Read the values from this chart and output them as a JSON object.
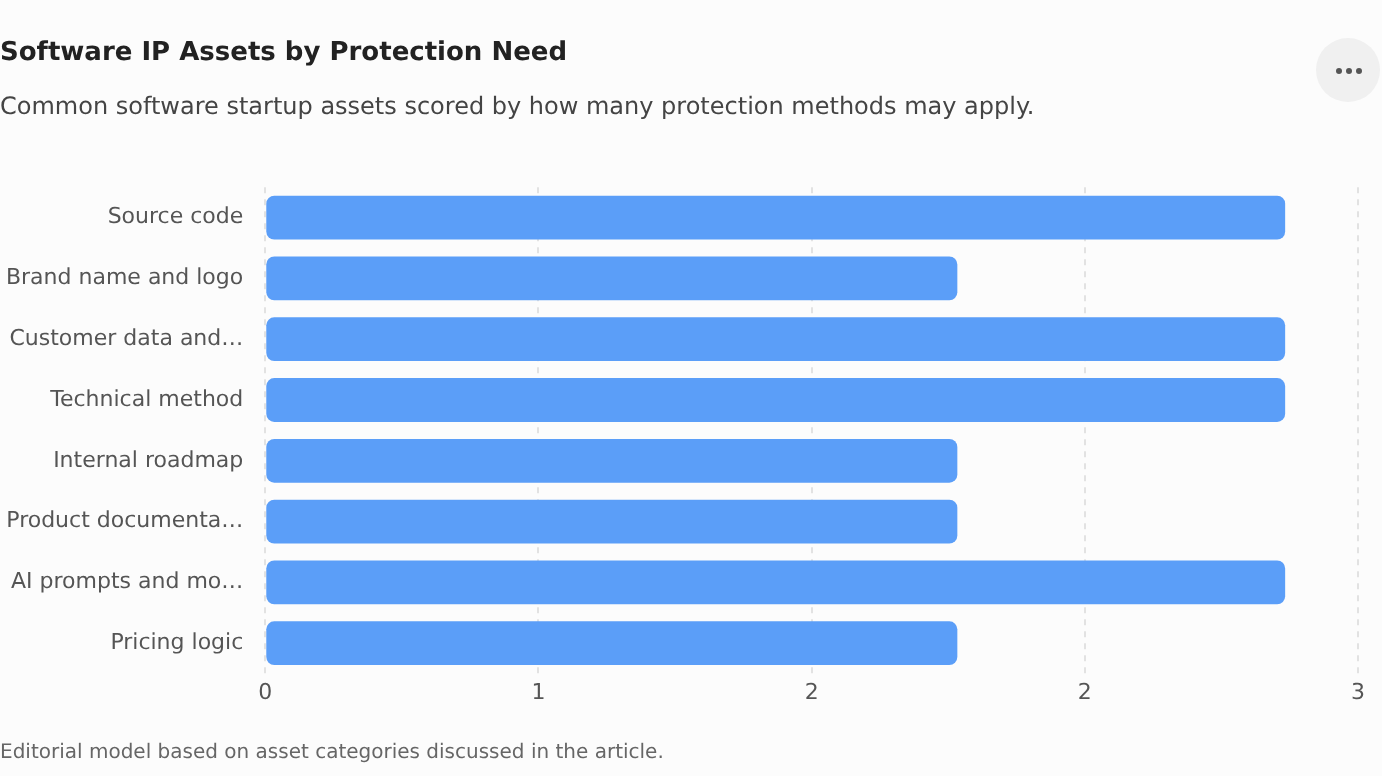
{
  "chart_data": {
    "type": "bar",
    "orientation": "horizontal",
    "title": "Software IP Assets by Protection Need",
    "subtitle": "Common software startup assets scored by how many protection methods may apply.",
    "categories": [
      "Source code",
      "Brand name and logo",
      "Customer data and…",
      "Technical method",
      "Internal roadmap",
      "Product documenta…",
      "AI prompts and mo…",
      "Pricing logic"
    ],
    "values": [
      2.8,
      1.9,
      2.8,
      2.8,
      1.9,
      1.9,
      2.8,
      1.9
    ],
    "color": "#5b9ef8",
    "xlim": [
      0,
      3
    ],
    "xticks": [
      0,
      {
        "value": 0.75,
        "label": "1"
      },
      {
        "value": 1.5,
        "label": "2"
      },
      {
        "value": 2.25,
        "label": "2"
      },
      3
    ],
    "grid": "x",
    "legend": false,
    "annotations": [
      "Editorial model based on asset categories discussed in the article."
    ]
  }
}
